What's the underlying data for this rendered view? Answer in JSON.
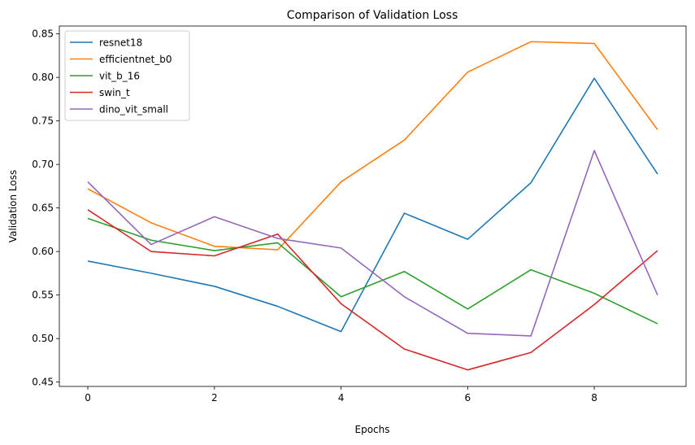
{
  "chart_data": {
    "type": "line",
    "title": "Comparison of Validation Loss",
    "xlabel": "Epochs",
    "ylabel": "Validation Loss",
    "xlim": [
      -0.45,
      9.45
    ],
    "ylim": [
      0.445,
      0.859
    ],
    "xticks": [
      0,
      2,
      4,
      6,
      8
    ],
    "xtick_labels": [
      "0",
      "2",
      "4",
      "6",
      "8"
    ],
    "yticks": [
      0.45,
      0.5,
      0.55,
      0.6,
      0.65,
      0.7,
      0.75,
      0.8,
      0.85
    ],
    "ytick_labels": [
      "0.45",
      "0.50",
      "0.55",
      "0.60",
      "0.65",
      "0.70",
      "0.75",
      "0.80",
      "0.85"
    ],
    "grid": false,
    "legend_position": "top-left",
    "x": [
      0,
      1,
      2,
      3,
      4,
      5,
      6,
      7,
      8,
      9
    ],
    "series": [
      {
        "name": "resnet18",
        "color": "#1f77b4",
        "values": [
          0.589,
          0.575,
          0.56,
          0.537,
          0.508,
          0.644,
          0.614,
          0.679,
          0.799,
          0.689
        ]
      },
      {
        "name": "efficientnet_b0",
        "color": "#ff7f0e",
        "values": [
          0.672,
          0.633,
          0.606,
          0.602,
          0.68,
          0.728,
          0.806,
          0.841,
          0.839,
          0.74
        ]
      },
      {
        "name": "vit_b_16",
        "color": "#2ca02c",
        "values": [
          0.638,
          0.613,
          0.601,
          0.61,
          0.548,
          0.577,
          0.534,
          0.579,
          0.552,
          0.517
        ]
      },
      {
        "name": "swin_t",
        "color": "#d62728",
        "values": [
          0.648,
          0.6,
          0.595,
          0.62,
          0.54,
          0.488,
          0.464,
          0.484,
          0.539,
          0.601
        ]
      },
      {
        "name": "dino_vit_small",
        "color": "#9467bd",
        "values": [
          0.68,
          0.608,
          0.64,
          0.615,
          0.604,
          0.548,
          0.506,
          0.503,
          0.716,
          0.55
        ]
      }
    ]
  }
}
